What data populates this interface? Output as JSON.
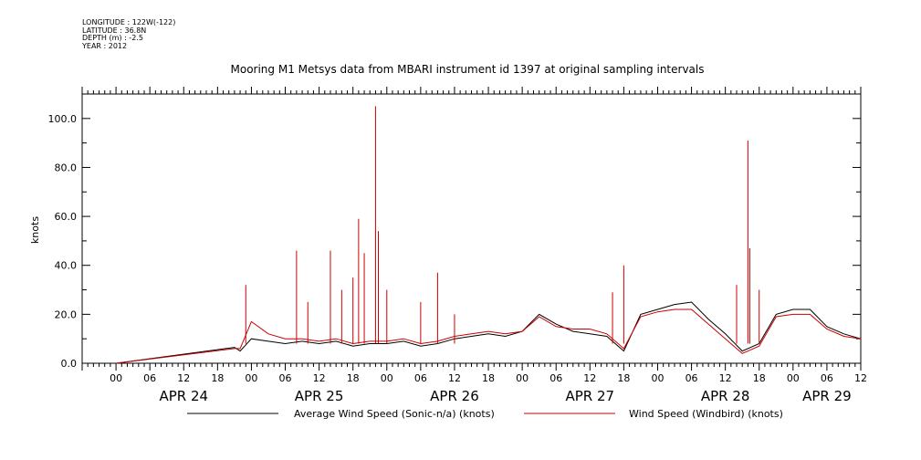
{
  "meta": {
    "longitude": "LONGITUDE : 122W(-122)",
    "latitude": "LATITUDE : 36.8N",
    "depth": "DEPTH (m) : -2.5",
    "year": "YEAR : 2012"
  },
  "chart_data": {
    "type": "line",
    "title": "Mooring M1 Metsys data from MBARI instrument id 1397 at original sampling intervals",
    "ylabel": "knots",
    "xlabel": "",
    "ylim": [
      0,
      110
    ],
    "yticks": [
      "0.0",
      "20.0",
      "40.0",
      "60.0",
      "80.0",
      "100.0"
    ],
    "x_range_hours": [
      "2012-04-23T18:00",
      "2012-04-29T12:00"
    ],
    "hour_ticks": [
      "00",
      "06",
      "12",
      "18",
      "00",
      "06",
      "12",
      "18",
      "00",
      "06",
      "12",
      "18",
      "00",
      "06",
      "12",
      "18",
      "00",
      "06",
      "12",
      "18",
      "00",
      "06",
      "12"
    ],
    "day_labels": [
      "APR 24",
      "APR 25",
      "APR 26",
      "APR 27",
      "APR 28",
      "APR 29"
    ],
    "grid": false,
    "legend_position": "bottom",
    "colors": {
      "avg": "#000000",
      "windbird": "#cc0000"
    },
    "series": [
      {
        "name": "Average Wind Speed (Sonic-n/a) (knots)",
        "color": "#000000",
        "points": [
          [
            "2012-04-24T00:00",
            0
          ],
          [
            "2012-04-24T21:00",
            6.5
          ],
          [
            "2012-04-24T22:00",
            5
          ],
          [
            "2012-04-25T00:00",
            10
          ],
          [
            "2012-04-25T03:00",
            9
          ],
          [
            "2012-04-25T06:00",
            8
          ],
          [
            "2012-04-25T09:00",
            9
          ],
          [
            "2012-04-25T12:00",
            8
          ],
          [
            "2012-04-25T15:00",
            9
          ],
          [
            "2012-04-25T18:00",
            7
          ],
          [
            "2012-04-25T21:00",
            8
          ],
          [
            "2012-04-26T00:00",
            8
          ],
          [
            "2012-04-26T03:00",
            9
          ],
          [
            "2012-04-26T06:00",
            7
          ],
          [
            "2012-04-26T09:00",
            8
          ],
          [
            "2012-04-26T12:00",
            10
          ],
          [
            "2012-04-26T15:00",
            11
          ],
          [
            "2012-04-26T18:00",
            12
          ],
          [
            "2012-04-26T21:00",
            11
          ],
          [
            "2012-04-27T00:00",
            13
          ],
          [
            "2012-04-27T03:00",
            20
          ],
          [
            "2012-04-27T06:00",
            16
          ],
          [
            "2012-04-27T09:00",
            13
          ],
          [
            "2012-04-27T12:00",
            12
          ],
          [
            "2012-04-27T15:00",
            11
          ],
          [
            "2012-04-27T18:00",
            5
          ],
          [
            "2012-04-27T21:00",
            20
          ],
          [
            "2012-04-28T00:00",
            22
          ],
          [
            "2012-04-28T03:00",
            24
          ],
          [
            "2012-04-28T06:00",
            25
          ],
          [
            "2012-04-28T09:00",
            18
          ],
          [
            "2012-04-28T12:00",
            12
          ],
          [
            "2012-04-28T15:00",
            5
          ],
          [
            "2012-04-28T18:00",
            8
          ],
          [
            "2012-04-28T21:00",
            20
          ],
          [
            "2012-04-29T00:00",
            22
          ],
          [
            "2012-04-29T03:00",
            22
          ],
          [
            "2012-04-29T06:00",
            15
          ],
          [
            "2012-04-29T09:00",
            12
          ],
          [
            "2012-04-29T12:00",
            10
          ]
        ]
      },
      {
        "name": "Wind Speed (Windbird) (knots)",
        "color": "#cc0000",
        "points": [
          [
            "2012-04-24T00:00",
            0
          ],
          [
            "2012-04-24T21:00",
            6
          ],
          [
            "2012-04-24T22:00",
            6
          ],
          [
            "2012-04-25T00:00",
            17
          ],
          [
            "2012-04-25T03:00",
            12
          ],
          [
            "2012-04-25T06:00",
            10
          ],
          [
            "2012-04-25T09:00",
            10
          ],
          [
            "2012-04-25T12:00",
            9
          ],
          [
            "2012-04-25T15:00",
            10
          ],
          [
            "2012-04-25T18:00",
            8
          ],
          [
            "2012-04-25T21:00",
            9
          ],
          [
            "2012-04-26T00:00",
            9
          ],
          [
            "2012-04-26T03:00",
            10
          ],
          [
            "2012-04-26T06:00",
            8
          ],
          [
            "2012-04-26T09:00",
            9
          ],
          [
            "2012-04-26T12:00",
            11
          ],
          [
            "2012-04-26T15:00",
            12
          ],
          [
            "2012-04-26T18:00",
            13
          ],
          [
            "2012-04-26T21:00",
            12
          ],
          [
            "2012-04-27T00:00",
            13
          ],
          [
            "2012-04-27T03:00",
            19
          ],
          [
            "2012-04-27T06:00",
            15
          ],
          [
            "2012-04-27T09:00",
            14
          ],
          [
            "2012-04-27T12:00",
            14
          ],
          [
            "2012-04-27T15:00",
            12
          ],
          [
            "2012-04-27T18:00",
            6
          ],
          [
            "2012-04-27T21:00",
            19
          ],
          [
            "2012-04-28T00:00",
            21
          ],
          [
            "2012-04-28T03:00",
            22
          ],
          [
            "2012-04-28T06:00",
            22
          ],
          [
            "2012-04-28T09:00",
            16
          ],
          [
            "2012-04-28T12:00",
            10
          ],
          [
            "2012-04-28T15:00",
            4
          ],
          [
            "2012-04-28T18:00",
            7
          ],
          [
            "2012-04-28T21:00",
            19
          ],
          [
            "2012-04-29T00:00",
            20
          ],
          [
            "2012-04-29T03:00",
            20
          ],
          [
            "2012-04-29T06:00",
            14
          ],
          [
            "2012-04-29T09:00",
            11
          ],
          [
            "2012-04-29T12:00",
            10
          ]
        ],
        "spikes": [
          [
            "2012-04-24T23:00",
            32
          ],
          [
            "2012-04-25T08:00",
            46
          ],
          [
            "2012-04-25T10:00",
            25
          ],
          [
            "2012-04-25T14:00",
            46
          ],
          [
            "2012-04-25T16:00",
            30
          ],
          [
            "2012-04-25T18:00",
            35
          ],
          [
            "2012-04-25T19:00",
            59
          ],
          [
            "2012-04-25T20:00",
            45
          ],
          [
            "2012-04-25T22:00",
            105
          ],
          [
            "2012-04-25T22:30",
            54
          ],
          [
            "2012-04-26T00:00",
            30
          ],
          [
            "2012-04-26T06:00",
            25
          ],
          [
            "2012-04-26T09:00",
            37
          ],
          [
            "2012-04-26T12:00",
            20
          ],
          [
            "2012-04-27T16:00",
            29
          ],
          [
            "2012-04-27T18:00",
            40
          ],
          [
            "2012-04-28T14:00",
            32
          ],
          [
            "2012-04-28T16:00",
            91
          ],
          [
            "2012-04-28T16:20",
            47
          ],
          [
            "2012-04-28T18:00",
            30
          ]
        ]
      }
    ]
  }
}
